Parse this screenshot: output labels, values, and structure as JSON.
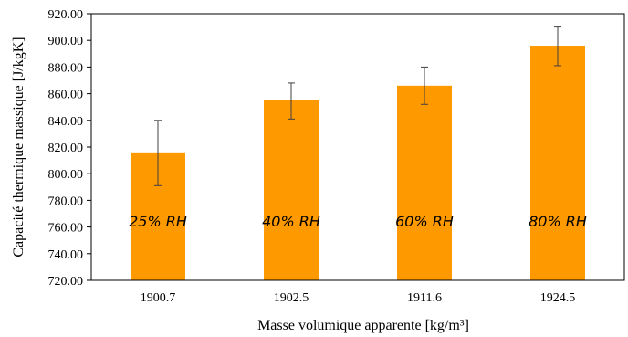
{
  "chart_data": {
    "type": "bar",
    "categories": [
      "1900.7",
      "1902.5",
      "1911.6",
      "1924.5"
    ],
    "values": [
      816,
      855,
      866,
      896
    ],
    "error_bars": [
      {
        "low": 791,
        "high": 840
      },
      {
        "low": 841,
        "high": 868
      },
      {
        "low": 852,
        "high": 880
      },
      {
        "low": 881,
        "high": 910
      }
    ],
    "bar_labels": [
      "25% RH",
      "40% RH",
      "60% RH",
      "80% RH"
    ],
    "xlabel": "Masse volumique apparente [kg/m³]",
    "ylabel": "Capacité thermique massique [J/kgK]",
    "ylim": [
      720,
      920
    ],
    "yticks": [
      "720.00",
      "740.00",
      "760.00",
      "780.00",
      "800.00",
      "820.00",
      "840.00",
      "860.00",
      "880.00",
      "900.00",
      "920.00"
    ],
    "grid": false,
    "colors": {
      "bar": "#FF9900",
      "error_bar": "#404040",
      "axis": "#000000"
    }
  }
}
